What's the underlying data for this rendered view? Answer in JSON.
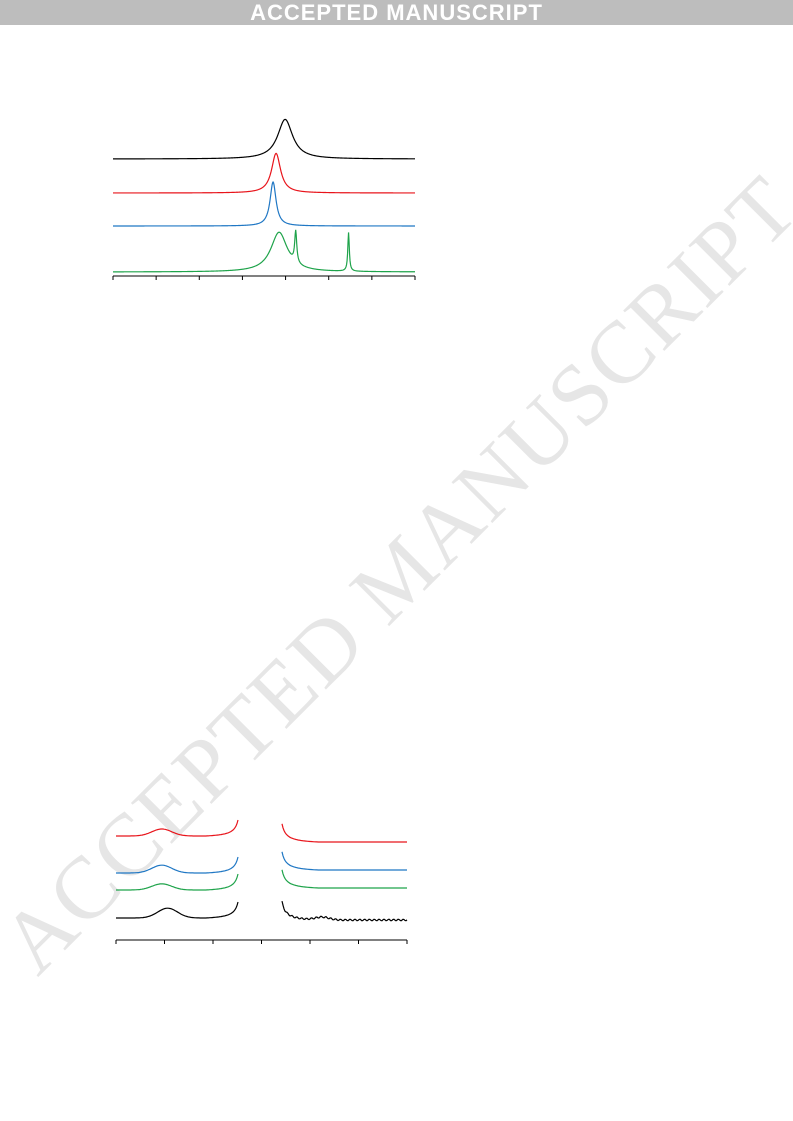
{
  "banner": {
    "text": "ACCEPTED MANUSCRIPT"
  },
  "watermark": {
    "text": "ACCEPTED MANUSCRIPT"
  },
  "colors": {
    "black": "#000000",
    "red": "#e8141b",
    "blue": "#1f77c4",
    "green": "#1ea34a",
    "banner": "#bdbdbd"
  },
  "chart_data": [
    {
      "type": "line",
      "title": "",
      "xlabel": "",
      "ylabel": "",
      "x_ticks_count": 8,
      "grid": false,
      "series": [
        {
          "color": "black",
          "offset": 3,
          "peaks": [
            {
              "x": 0.57,
              "h": 0.9,
              "w": 0.03
            }
          ]
        },
        {
          "color": "red",
          "offset": 2,
          "peaks": [
            {
              "x": 0.54,
              "h": 0.9,
              "w": 0.018
            }
          ]
        },
        {
          "color": "blue",
          "offset": 1,
          "peaks": [
            {
              "x": 0.53,
              "h": 1.0,
              "w": 0.012
            }
          ]
        },
        {
          "color": "green",
          "offset": 0,
          "peaks": [
            {
              "x": 0.55,
              "h": 0.9,
              "w": 0.033
            },
            {
              "x": 0.605,
              "h": 0.72,
              "w": 0.004
            },
            {
              "x": 0.78,
              "h": 0.88,
              "w": 0.003
            }
          ]
        }
      ]
    },
    {
      "type": "line",
      "title": "",
      "xlabel": "",
      "ylabel": "",
      "x_ticks_count": 7,
      "grid": false,
      "series": [
        {
          "color": "red",
          "offset": 3,
          "bump_x": 0.13,
          "bump_h": 0.25
        },
        {
          "color": "blue",
          "offset": 2,
          "bump_x": 0.13,
          "bump_h": 0.28
        },
        {
          "color": "green",
          "offset": 1,
          "bump_x": 0.13,
          "bump_h": 0.22
        },
        {
          "color": "black",
          "offset": 0,
          "bump_x": 0.15,
          "bump_h": 0.35
        }
      ]
    }
  ]
}
